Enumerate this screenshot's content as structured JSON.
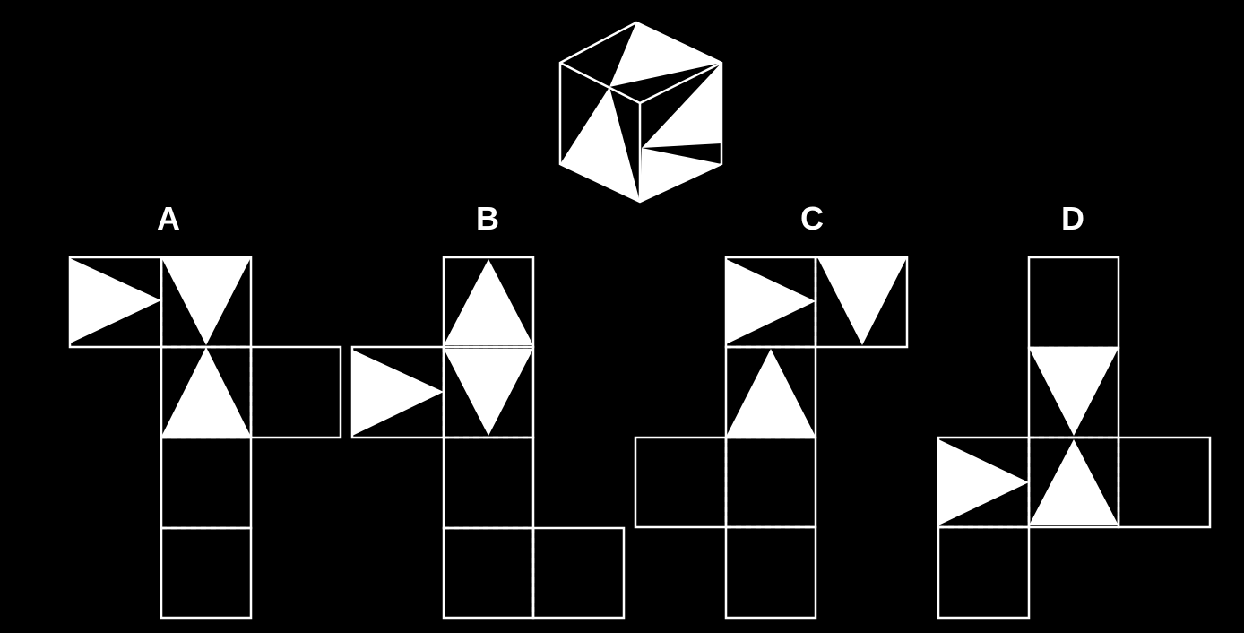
{
  "puzzle": {
    "type": "cube-net-matching",
    "colors": {
      "background": "#000000",
      "foreground": "#ffffff"
    },
    "options": [
      {
        "id": "A",
        "label": "A"
      },
      {
        "id": "B",
        "label": "B"
      },
      {
        "id": "C",
        "label": "C"
      },
      {
        "id": "D",
        "label": "D"
      }
    ]
  }
}
